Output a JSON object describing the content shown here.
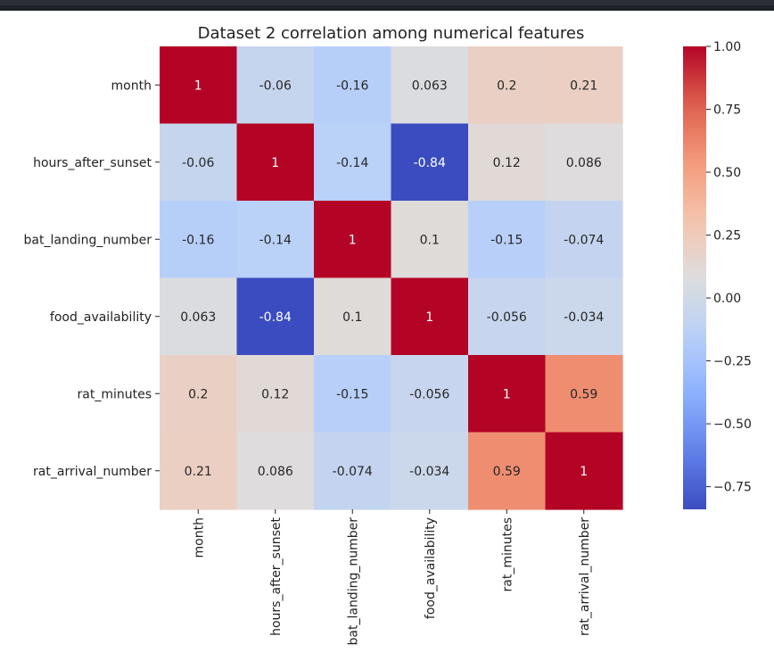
{
  "chart_data": {
    "type": "heatmap",
    "title": "Dataset 2 correlation among numerical features",
    "x_labels": [
      "month",
      "hours_after_sunset",
      "bat_landing_number",
      "food_availability",
      "rat_minutes",
      "rat_arrival_number"
    ],
    "y_labels": [
      "month",
      "hours_after_sunset",
      "bat_landing_number",
      "food_availability",
      "rat_minutes",
      "rat_arrival_number"
    ],
    "values": [
      [
        1,
        -0.06,
        -0.16,
        0.063,
        0.2,
        0.21
      ],
      [
        -0.06,
        1,
        -0.14,
        -0.84,
        0.12,
        0.086
      ],
      [
        -0.16,
        -0.14,
        1,
        0.1,
        -0.15,
        -0.074
      ],
      [
        0.063,
        -0.84,
        0.1,
        1,
        -0.056,
        -0.034
      ],
      [
        0.2,
        0.12,
        -0.15,
        -0.056,
        1,
        0.59
      ],
      [
        0.21,
        0.086,
        -0.074,
        -0.034,
        0.59,
        1
      ]
    ],
    "annotations": [
      [
        "1",
        "-0.06",
        "-0.16",
        "0.063",
        "0.2",
        "0.21"
      ],
      [
        "-0.06",
        "1",
        "-0.14",
        "-0.84",
        "0.12",
        "0.086"
      ],
      [
        "-0.16",
        "-0.14",
        "1",
        "0.1",
        "-0.15",
        "-0.074"
      ],
      [
        "0.063",
        "-0.84",
        "0.1",
        "1",
        "-0.056",
        "-0.034"
      ],
      [
        "0.2",
        "0.12",
        "-0.15",
        "-0.056",
        "1",
        "0.59"
      ],
      [
        "0.21",
        "0.086",
        "-0.074",
        "-0.034",
        "0.59",
        "1"
      ]
    ],
    "colormap": "coolwarm",
    "colorbar": {
      "range": [
        -0.84,
        1.0
      ],
      "ticks": [
        1.0,
        0.75,
        0.5,
        0.25,
        0.0,
        -0.25,
        -0.5,
        -0.75
      ],
      "tick_labels": [
        "1.00",
        "0.75",
        "0.50",
        "0.25",
        "0.00",
        "−0.25",
        "−0.50",
        "−0.75"
      ]
    },
    "legend": "colorbar-right"
  }
}
